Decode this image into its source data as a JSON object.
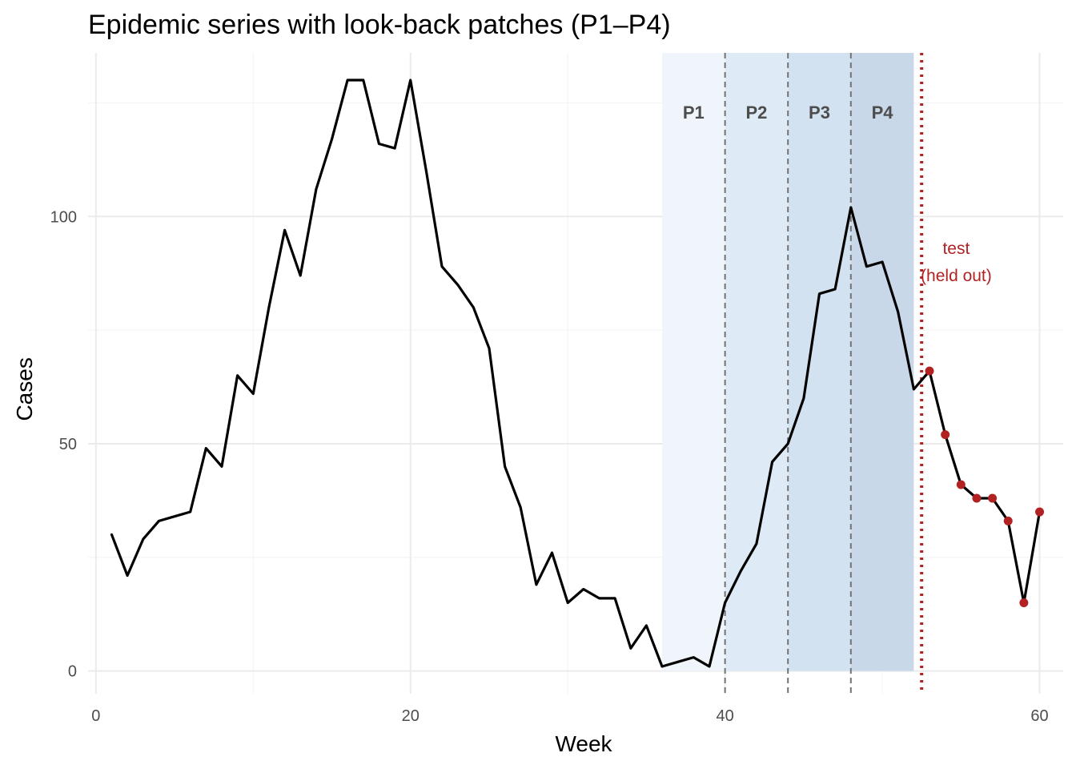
{
  "title": "Epidemic series with look-back patches (P1–P4)",
  "chart_data": {
    "type": "line",
    "title": "Epidemic series with look-back patches (P1–P4)",
    "xlabel": "Week",
    "ylabel": "Cases",
    "xlim": [
      -0.5,
      61.5
    ],
    "ylim": [
      -5,
      136
    ],
    "x_ticks": [
      0,
      20,
      40,
      60
    ],
    "x_tick_labels": [
      "0",
      "20",
      "40",
      "60"
    ],
    "y_ticks": [
      0,
      50,
      100
    ],
    "y_tick_labels": [
      "0",
      "50",
      "100"
    ],
    "grid": true,
    "series": [
      {
        "name": "cases",
        "x": [
          1,
          2,
          3,
          4,
          5,
          6,
          7,
          8,
          9,
          10,
          11,
          12,
          13,
          14,
          15,
          16,
          17,
          18,
          19,
          20,
          21,
          22,
          23,
          24,
          25,
          26,
          27,
          28,
          29,
          30,
          31,
          32,
          33,
          34,
          35,
          36,
          37,
          38,
          39,
          40,
          41,
          42,
          43,
          44,
          45,
          46,
          47,
          48,
          49,
          50,
          51,
          52,
          53,
          54,
          55,
          56,
          57,
          58,
          59,
          60
        ],
        "values": [
          30,
          21,
          29,
          33,
          34,
          35,
          49,
          45,
          65,
          61,
          80,
          97,
          87,
          106,
          117,
          130,
          130,
          116,
          115,
          130,
          110,
          89,
          85,
          80,
          71,
          45,
          36,
          19,
          26,
          15,
          18,
          16,
          16,
          5,
          10,
          1,
          2,
          3,
          1,
          15,
          22,
          28,
          46,
          50,
          60,
          83,
          84,
          102,
          89,
          90,
          79,
          62,
          66,
          52,
          41,
          38,
          38,
          33,
          15,
          35
        ],
        "color": "#000000"
      }
    ],
    "test_points": {
      "x": [
        53,
        54,
        55,
        56,
        57,
        58,
        59,
        60
      ],
      "values": [
        66,
        52,
        41,
        38,
        38,
        33,
        15,
        35
      ],
      "color": "#b22222"
    },
    "patches": [
      {
        "label": "P1",
        "start": 36,
        "end": 40,
        "color": "#eff5fa"
      },
      {
        "label": "P2",
        "start": 40,
        "end": 44,
        "color": "#deebf6"
      },
      {
        "label": "P3",
        "start": 44,
        "end": 48,
        "color": "#d2e2f0"
      },
      {
        "label": "P4",
        "start": 48,
        "end": 52,
        "color": "#c8d8e8"
      }
    ],
    "patch_label_y": 123,
    "boundary_lines": [
      40,
      44,
      48
    ],
    "test_split_x": 52.5,
    "test_label_lines": [
      "test",
      "(held out)"
    ],
    "test_label_x": 54.7,
    "test_label_y": [
      93,
      87
    ]
  }
}
